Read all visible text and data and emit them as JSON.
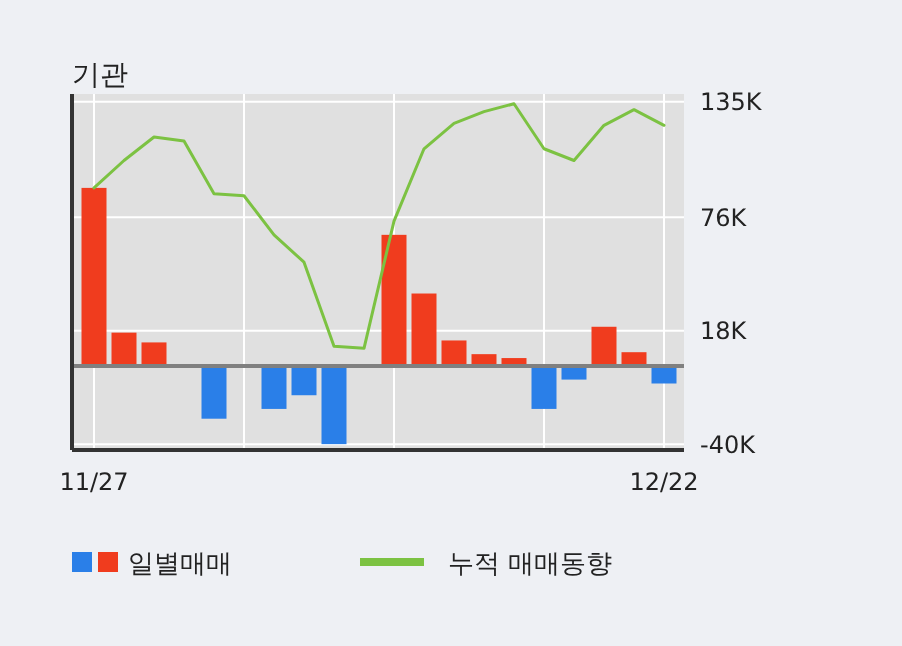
{
  "chart_data": {
    "type": "bar",
    "title": "기관",
    "categories": [
      "11/27",
      null,
      null,
      null,
      null,
      null,
      null,
      null,
      null,
      null,
      null,
      null,
      null,
      null,
      null,
      null,
      null,
      null,
      null,
      "12/22"
    ],
    "series": [
      {
        "name": "일별매매",
        "values": [
          91,
          17,
          12,
          0,
          -27,
          0,
          -22,
          -15,
          -40,
          0,
          67,
          37,
          13,
          6,
          4,
          -22,
          -7,
          20,
          7,
          -9
        ],
        "colors": [
          "#f03c1e",
          "#f03c1e",
          "#f03c1e",
          "#f03c1e",
          "#2a7fe8",
          "#f03c1e",
          "#2a7fe8",
          "#2a7fe8",
          "#2a7fe8",
          "#f03c1e",
          "#f03c1e",
          "#f03c1e",
          "#f03c1e",
          "#f03c1e",
          "#f03c1e",
          "#2a7fe8",
          "#2a7fe8",
          "#f03c1e",
          "#f03c1e",
          "#2a7fe8"
        ]
      },
      {
        "type": "line",
        "name": "누적 매매동향",
        "color": "#7cc242",
        "values": [
          91,
          105,
          117,
          115,
          88,
          87,
          67,
          53,
          10,
          9,
          74,
          111,
          124,
          130,
          134,
          111,
          105,
          123,
          131,
          123
        ]
      }
    ],
    "ylim": [
      -43,
      139
    ],
    "yticks": [
      {
        "value": 135,
        "label": "135K"
      },
      {
        "value": 76,
        "label": "76K"
      },
      {
        "value": 18,
        "label": "18K"
      },
      {
        "value": -40,
        "label": "-40K"
      }
    ],
    "grid": true,
    "legend": "bottom"
  }
}
